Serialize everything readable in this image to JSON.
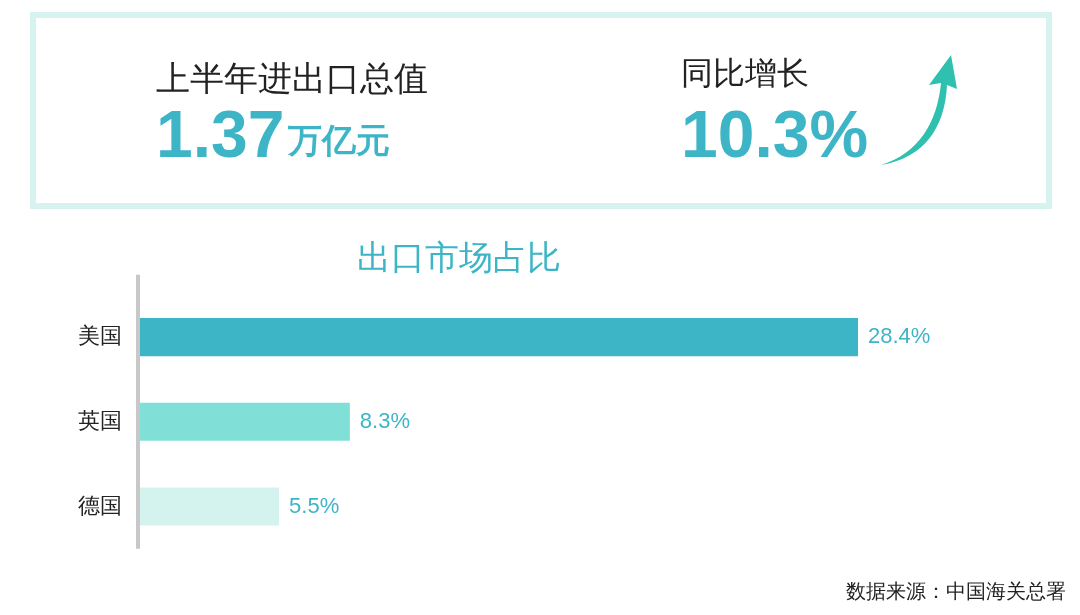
{
  "chart_data": [
    {
      "type": "other",
      "annotations": [
        "上半年进出口总值",
        "1.37",
        "万亿元",
        "同比增长",
        "10.3%"
      ]
    },
    {
      "type": "bar",
      "orientation": "horizontal",
      "title": "出口市场占比",
      "categories": [
        "美国",
        "英国",
        "德国"
      ],
      "values": [
        28.4,
        8.3,
        5.5
      ],
      "colors": [
        "#3db5c6",
        "#80e0d8",
        "#d4f3ef"
      ],
      "value_labels": [
        "28.4%",
        "8.3%",
        "5.5%"
      ],
      "annotations": [
        "数据来源：中国海关总署"
      ]
    }
  ]
}
